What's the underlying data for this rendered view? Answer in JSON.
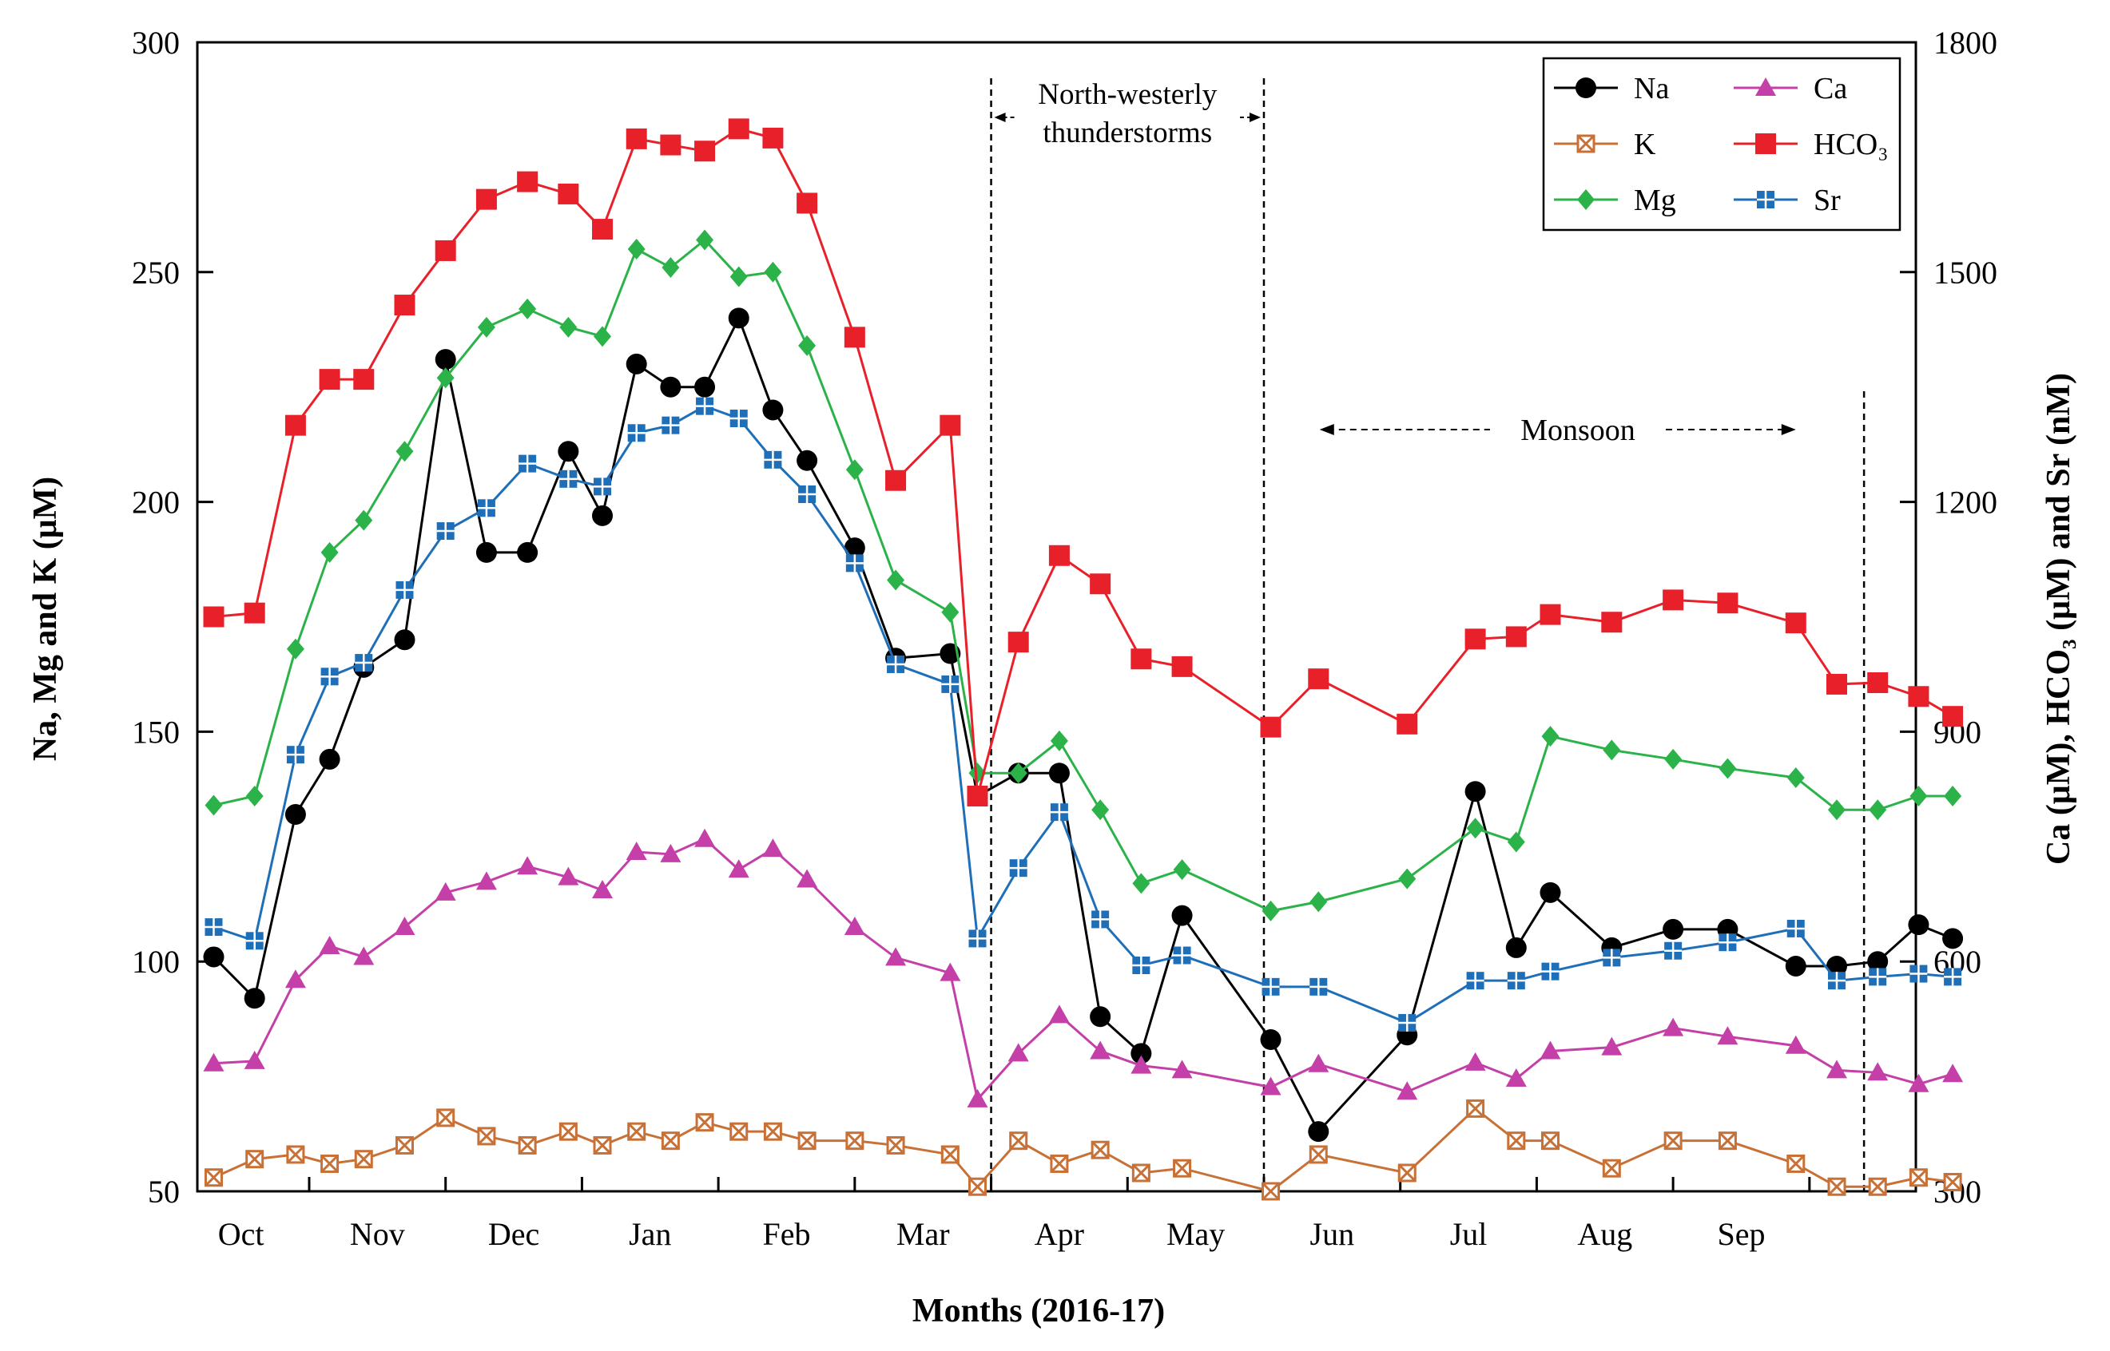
{
  "chart_data": {
    "type": "line",
    "xlabel": "Months (2016-17)",
    "ylabel_left": "Na, Mg and K (μM)",
    "ylabel_right": "Ca (μM), HCO₃ (μM) and Sr (nM)",
    "ylim_left": [
      50,
      300
    ],
    "ylim_right": [
      300,
      1800
    ],
    "yticks_left": [
      "300",
      "250",
      "200",
      "150",
      "100",
      "50"
    ],
    "yticks_right": [
      "1800",
      "1500",
      "1200",
      "900",
      "600",
      "300"
    ],
    "months": [
      "Oct",
      "Nov",
      "Dec",
      "Jan",
      "Feb",
      "Mar",
      "Apr",
      "May",
      "Jun",
      "Jul",
      "Aug",
      "Sep"
    ],
    "x": [
      0.12,
      0.42,
      0.72,
      0.97,
      1.22,
      1.52,
      1.82,
      2.12,
      2.42,
      2.72,
      2.97,
      3.22,
      3.47,
      3.72,
      3.97,
      4.22,
      4.47,
      4.82,
      5.12,
      5.52,
      5.72,
      6.02,
      6.32,
      6.62,
      6.92,
      7.22,
      7.87,
      8.22,
      8.87,
      9.37,
      9.67,
      9.92,
      10.37,
      10.82,
      11.22,
      11.72,
      12.02,
      12.32,
      12.62,
      12.87
    ],
    "series": [
      {
        "name": "Na",
        "axis": "left",
        "color": "#000000",
        "marker": "circle",
        "values": [
          101,
          92,
          132,
          144,
          164,
          170,
          231,
          189,
          189,
          211,
          197,
          230,
          225,
          225,
          240,
          220,
          209,
          190,
          166,
          167,
          136,
          141,
          141,
          88,
          80,
          110,
          83,
          63,
          84,
          137,
          103,
          115,
          103,
          107,
          107,
          99,
          99,
          100,
          108,
          105
        ]
      },
      {
        "name": "K",
        "axis": "left",
        "color": "#c87137",
        "marker": "x-square",
        "values": [
          53,
          57,
          58,
          56,
          57,
          60,
          66,
          62,
          60,
          63,
          60,
          63,
          61,
          65,
          63,
          63,
          61,
          61,
          60,
          58,
          51,
          61,
          56,
          59,
          54,
          55,
          50,
          58,
          54,
          68,
          61,
          61,
          55,
          61,
          61,
          56,
          51,
          51,
          53,
          52
        ]
      },
      {
        "name": "Mg",
        "axis": "left",
        "color": "#2bb34a",
        "marker": "diamond",
        "values": [
          134,
          136,
          168,
          189,
          196,
          211,
          227,
          238,
          242,
          238,
          236,
          255,
          251,
          257,
          249,
          250,
          234,
          207,
          183,
          176,
          141,
          141,
          148,
          133,
          117,
          120,
          111,
          113,
          118,
          129,
          126,
          149,
          146,
          144,
          142,
          140,
          133,
          133,
          136,
          136
        ]
      },
      {
        "name": "Ca",
        "axis": "right",
        "color": "#c43fa8",
        "marker": "triangle",
        "values": [
          467,
          470,
          576,
          620,
          606,
          645,
          690,
          704,
          724,
          710,
          693,
          743,
          740,
          760,
          720,
          747,
          707,
          645,
          605,
          585,
          420,
          480,
          530,
          483,
          464,
          458,
          436,
          466,
          430,
          468,
          447,
          483,
          488,
          513,
          502,
          490,
          458,
          455,
          440,
          453
        ]
      },
      {
        "name": "HCO₃",
        "axis": "right",
        "color": "#e8202a",
        "marker": "square",
        "values": [
          1050,
          1055,
          1300,
          1360,
          1360,
          1457,
          1528,
          1595,
          1618,
          1602,
          1556,
          1674,
          1666,
          1658,
          1687,
          1675,
          1590,
          1415,
          1228,
          1300,
          816,
          1017,
          1130,
          1093,
          995,
          985,
          906,
          969,
          910,
          1021,
          1024,
          1053,
          1043,
          1072,
          1068,
          1042,
          962,
          964,
          946,
          920
        ]
      },
      {
        "name": "Sr",
        "axis": "right",
        "color": "#1f6fb8",
        "marker": "square-cross",
        "values": [
          645,
          627,
          870,
          972,
          990,
          1085,
          1162,
          1192,
          1250,
          1230,
          1220,
          1290,
          1300,
          1325,
          1309,
          1255,
          1210,
          1120,
          988,
          962,
          630,
          722,
          795,
          655,
          595,
          608,
          567,
          567,
          520,
          575,
          575,
          587,
          605,
          614,
          625,
          643,
          575,
          580,
          584,
          580
        ]
      }
    ],
    "annotations": [
      {
        "text_line1": "North-westerly",
        "text_line2": "thunderstorms",
        "x_start": 5.82,
        "x_end": 7.82
      },
      {
        "text": "Monsoon",
        "x_start": 8.17,
        "x_end": 11.72
      }
    ],
    "vlines_x": [
      5.82,
      7.82,
      12.22
    ],
    "legend": {
      "position": "top-right",
      "columns": 2,
      "order": [
        "Na",
        "Ca",
        "K",
        "HCO₃",
        "Mg",
        "Sr"
      ]
    },
    "grid": false
  }
}
